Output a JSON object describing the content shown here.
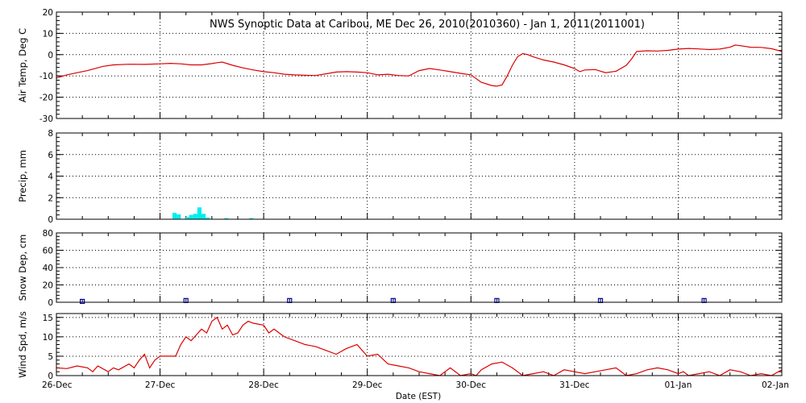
{
  "title": "NWS Synoptic Data at Caribou, ME   Dec 26, 2010(2010360) - Jan  1, 2011(2011001)",
  "x_axis": {
    "label": "Date (EST)",
    "range_days": [
      0,
      7
    ],
    "tick_labels": [
      "26-Dec",
      "27-Dec",
      "28-Dec",
      "29-Dec",
      "30-Dec",
      "31-Dec",
      "01-Jan",
      "02-Jan"
    ],
    "grid": true,
    "grid_style": "dotted"
  },
  "colors": {
    "frame": "#000000",
    "temp_line": "#dd0000",
    "precip_bar": "#00eeee",
    "snow_marker": "#0000aa",
    "wind_line": "#dd0000"
  },
  "chart_data": [
    {
      "id": "temp",
      "type": "line",
      "ylabel": "Air Temp, Deg C",
      "ylim": [
        -30,
        20
      ],
      "ytick_labels": [
        "20",
        "10",
        "0",
        "-10",
        "-20",
        "-30"
      ],
      "grid": true,
      "series": [
        {
          "color_key": "temp_line",
          "x": [
            0,
            0.1,
            0.2,
            0.3,
            0.45,
            0.55,
            0.7,
            0.85,
            1.0,
            1.1,
            1.2,
            1.3,
            1.4,
            1.5,
            1.55,
            1.6,
            1.7,
            1.8,
            1.9,
            2.0,
            2.1,
            2.2,
            2.3,
            2.4,
            2.5,
            2.6,
            2.7,
            2.8,
            2.9,
            3.0,
            3.05,
            3.1,
            3.2,
            3.3,
            3.4,
            3.5,
            3.6,
            3.7,
            3.8,
            3.9,
            4.0,
            4.1,
            4.2,
            4.25,
            4.3,
            4.35,
            4.4,
            4.45,
            4.5,
            4.55,
            4.6,
            4.7,
            4.8,
            4.9,
            5.0,
            5.05,
            5.1,
            5.2,
            5.3,
            5.4,
            5.5,
            5.55,
            5.6,
            5.7,
            5.8,
            5.9,
            6.0,
            6.1,
            6.2,
            6.3,
            6.4,
            6.5,
            6.55,
            6.6,
            6.7,
            6.8,
            6.9,
            7.0
          ],
          "y": [
            -11,
            -9.5,
            -8.5,
            -7.5,
            -5.5,
            -4.8,
            -4.5,
            -4.6,
            -4.3,
            -4.1,
            -4.3,
            -4.8,
            -4.8,
            -4.2,
            -3.8,
            -3.5,
            -5,
            -6.2,
            -7.2,
            -8,
            -8.5,
            -9.2,
            -9.5,
            -9.7,
            -9.8,
            -9,
            -8.2,
            -8,
            -8.2,
            -8.5,
            -9,
            -9.5,
            -9.2,
            -9.8,
            -10,
            -7.5,
            -6.5,
            -7.2,
            -8,
            -8.8,
            -9.5,
            -13,
            -14.5,
            -14.8,
            -14.2,
            -10,
            -5,
            -1,
            0.5,
            0,
            -1,
            -2.5,
            -3.5,
            -4.8,
            -6.5,
            -8,
            -7.2,
            -7,
            -8.5,
            -7.8,
            -5,
            -2,
            1.5,
            1.8,
            1.7,
            2,
            2.6,
            2.9,
            2.7,
            2.4,
            2.6,
            3.5,
            4.5,
            4.2,
            3.5,
            3.4,
            2.8,
            1.5
          ]
        }
      ]
    },
    {
      "id": "precip",
      "type": "bar",
      "ylabel": "Precip, mm",
      "ylim": [
        0,
        8
      ],
      "ytick_labels": [
        "8",
        "6",
        "4",
        "2",
        "0"
      ],
      "grid": true,
      "bar_width_days": 0.04,
      "series": [
        {
          "color_key": "precip_bar",
          "x": [
            1.14,
            1.18,
            1.26,
            1.3,
            1.34,
            1.38,
            1.42,
            1.46,
            1.64,
            1.88
          ],
          "values": [
            0.6,
            0.45,
            0.2,
            0.4,
            0.5,
            1.1,
            0.5,
            0.15,
            0.1,
            0.1
          ]
        }
      ]
    },
    {
      "id": "snow",
      "type": "scatter",
      "ylabel": "Snow Dep, cm",
      "ylim": [
        0,
        80
      ],
      "ytick_labels": [
        "80",
        "60",
        "40",
        "20",
        "0"
      ],
      "grid": true,
      "marker": "hollow-square",
      "series": [
        {
          "color_key": "snow_marker",
          "x": [
            0.25,
            1.25,
            2.25,
            3.25,
            4.25,
            5.25,
            6.25
          ],
          "y": [
            1,
            2,
            2,
            2,
            2,
            2,
            2
          ]
        }
      ]
    },
    {
      "id": "wind",
      "type": "line",
      "ylabel": "Wind Spd, m/s",
      "ylim": [
        0,
        16
      ],
      "ytick_labels": [
        "15",
        "10",
        "5",
        "0"
      ],
      "grid": true,
      "series": [
        {
          "color_key": "wind_line",
          "x": [
            0,
            0.1,
            0.2,
            0.3,
            0.35,
            0.4,
            0.5,
            0.55,
            0.6,
            0.7,
            0.75,
            0.8,
            0.85,
            0.9,
            0.95,
            1.0,
            1.05,
            1.1,
            1.15,
            1.2,
            1.25,
            1.3,
            1.35,
            1.4,
            1.45,
            1.5,
            1.55,
            1.6,
            1.65,
            1.7,
            1.75,
            1.8,
            1.85,
            1.9,
            2.0,
            2.05,
            2.1,
            2.15,
            2.2,
            2.3,
            2.4,
            2.5,
            2.6,
            2.7,
            2.8,
            2.9,
            3.0,
            3.1,
            3.2,
            3.3,
            3.4,
            3.5,
            3.6,
            3.7,
            3.8,
            3.9,
            4.0,
            4.05,
            4.1,
            4.2,
            4.3,
            4.4,
            4.5,
            4.6,
            4.7,
            4.8,
            4.9,
            5.0,
            5.1,
            5.2,
            5.3,
            5.4,
            5.5,
            5.6,
            5.7,
            5.8,
            5.9,
            6.0,
            6.05,
            6.1,
            6.2,
            6.3,
            6.4,
            6.5,
            6.6,
            6.7,
            6.8,
            6.9,
            7.0
          ],
          "y": [
            2,
            1.8,
            2.5,
            2,
            1,
            2.5,
            1,
            2,
            1.5,
            3,
            2,
            4,
            5.5,
            2,
            4,
            5,
            5,
            5,
            5,
            8,
            10,
            9,
            10.5,
            12,
            11,
            14,
            15,
            12,
            13,
            10.5,
            11,
            13,
            14,
            13.5,
            13,
            11,
            12,
            11,
            10,
            9,
            8,
            7.5,
            6.5,
            5.5,
            7,
            8,
            5,
            5.5,
            3,
            2.5,
            2,
            1,
            0.5,
            0,
            2,
            0,
            0.5,
            0,
            1.5,
            3,
            3.5,
            2,
            0,
            0.5,
            1,
            0,
            1.5,
            1,
            0.5,
            1,
            1.5,
            2,
            0,
            0.5,
            1.5,
            2,
            1.5,
            0.5,
            1,
            0,
            0.5,
            1,
            0,
            1.5,
            1,
            0,
            0.5,
            0,
            1.5
          ]
        }
      ]
    }
  ]
}
